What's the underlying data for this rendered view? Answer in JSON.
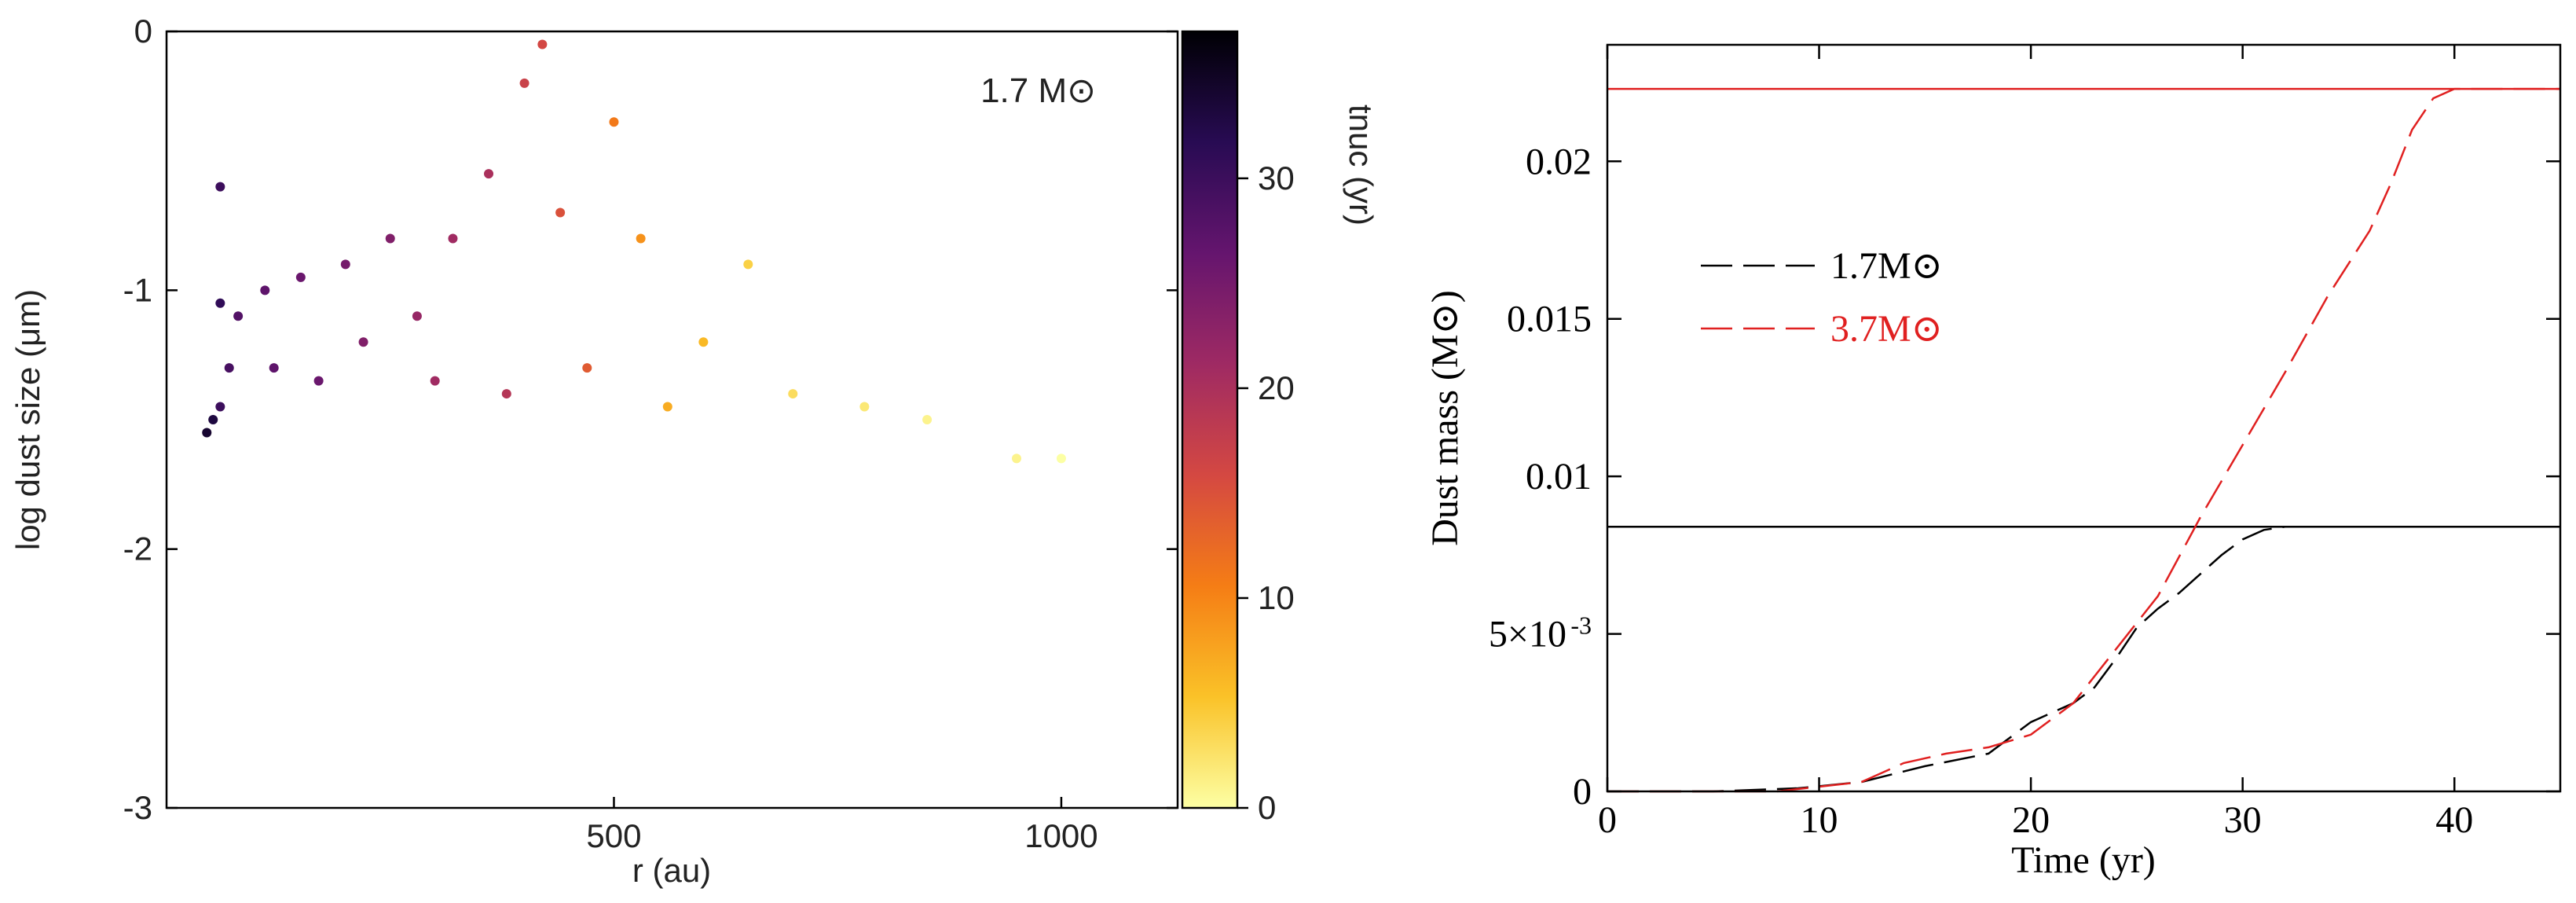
{
  "chart_data": [
    {
      "type": "scatter",
      "annotation": "1.7 M⊙",
      "xlabel": "r (au)",
      "ylabel": "log dust size (μm)",
      "xlim": [
        0,
        1130
      ],
      "ylim": [
        -3,
        0
      ],
      "x_ticks": [
        500,
        1000
      ],
      "x_tick_labels": [
        "500",
        "1000"
      ],
      "y_ticks": [
        0,
        -1,
        -2,
        -3
      ],
      "y_tick_labels": [
        "0",
        "-1",
        "-2",
        "-3"
      ],
      "colorbar": {
        "label": "tnuc (yr)",
        "range": [
          0,
          37
        ],
        "ticks": [
          0,
          10,
          20,
          30
        ],
        "tick_labels": [
          "0",
          "10",
          "20",
          "30"
        ],
        "colormap": "inferno-reversed",
        "colors": [
          "#fcffa4",
          "#fac228",
          "#f57d15",
          "#d44842",
          "#9f2a63",
          "#65156e",
          "#280b53",
          "#000004"
        ]
      },
      "points": [
        {
          "x": 45,
          "y": -1.55,
          "t": 34
        },
        {
          "x": 52,
          "y": -1.5,
          "t": 33
        },
        {
          "x": 60,
          "y": -1.45,
          "t": 30
        },
        {
          "x": 60,
          "y": -1.05,
          "t": 31
        },
        {
          "x": 60,
          "y": -0.6,
          "t": 30
        },
        {
          "x": 70,
          "y": -1.3,
          "t": 29
        },
        {
          "x": 80,
          "y": -1.1,
          "t": 28
        },
        {
          "x": 110,
          "y": -1.0,
          "t": 27
        },
        {
          "x": 120,
          "y": -1.3,
          "t": 27
        },
        {
          "x": 150,
          "y": -0.95,
          "t": 26
        },
        {
          "x": 170,
          "y": -1.35,
          "t": 26
        },
        {
          "x": 200,
          "y": -0.9,
          "t": 25
        },
        {
          "x": 220,
          "y": -1.2,
          "t": 24
        },
        {
          "x": 250,
          "y": -0.8,
          "t": 24
        },
        {
          "x": 280,
          "y": -1.1,
          "t": 22
        },
        {
          "x": 300,
          "y": -1.35,
          "t": 21
        },
        {
          "x": 320,
          "y": -0.8,
          "t": 21
        },
        {
          "x": 360,
          "y": -0.55,
          "t": 20
        },
        {
          "x": 380,
          "y": -1.4,
          "t": 19
        },
        {
          "x": 400,
          "y": -0.2,
          "t": 17
        },
        {
          "x": 420,
          "y": -0.05,
          "t": 16
        },
        {
          "x": 440,
          "y": -0.7,
          "t": 15
        },
        {
          "x": 470,
          "y": -1.3,
          "t": 14
        },
        {
          "x": 500,
          "y": -0.35,
          "t": 11
        },
        {
          "x": 530,
          "y": -0.8,
          "t": 9
        },
        {
          "x": 560,
          "y": -1.45,
          "t": 7
        },
        {
          "x": 600,
          "y": -1.2,
          "t": 6
        },
        {
          "x": 650,
          "y": -0.9,
          "t": 4
        },
        {
          "x": 700,
          "y": -1.4,
          "t": 3
        },
        {
          "x": 780,
          "y": -1.45,
          "t": 2
        },
        {
          "x": 850,
          "y": -1.5,
          "t": 1
        },
        {
          "x": 950,
          "y": -1.65,
          "t": 1
        },
        {
          "x": 1000,
          "y": -1.65,
          "t": 0
        }
      ]
    },
    {
      "type": "line",
      "xlabel": "Time (yr)",
      "ylabel": "Dust mass (M⊙)",
      "xlim": [
        0,
        45
      ],
      "ylim": [
        0,
        0.0237
      ],
      "x_ticks": [
        0,
        10,
        20,
        30,
        40
      ],
      "x_tick_labels": [
        "0",
        "10",
        "20",
        "30",
        "40"
      ],
      "y_ticks": [
        0,
        0.005,
        0.01,
        0.015,
        0.02
      ],
      "y_tick_labels": [
        "0",
        "5×10",
        "0.01",
        "0.015",
        "0.02"
      ],
      "y_tick_exponent": "-3",
      "legend_position": "upper-left",
      "series": [
        {
          "name": "1.7M⊙",
          "color": "#000000",
          "dashed": true,
          "x": [
            0,
            5,
            9,
            12,
            15,
            18,
            20,
            22,
            23,
            24,
            25,
            26,
            27,
            28,
            29,
            30,
            31,
            32,
            45
          ],
          "y": [
            0,
            0,
            0.0001,
            0.0003,
            0.0008,
            0.0012,
            0.0022,
            0.0028,
            0.0033,
            0.0042,
            0.0052,
            0.0058,
            0.0063,
            0.0069,
            0.0075,
            0.008,
            0.0083,
            0.0084,
            0.0084
          ]
        },
        {
          "name": "3.7M⊙",
          "color": "#e02020",
          "dashed": true,
          "x": [
            0,
            8,
            12,
            14,
            16,
            18,
            20,
            22,
            24,
            26,
            28,
            30,
            32,
            34,
            36,
            37,
            38,
            39,
            40,
            41,
            45
          ],
          "y": [
            0,
            0,
            0.0003,
            0.0009,
            0.0012,
            0.0014,
            0.0018,
            0.0028,
            0.0045,
            0.0062,
            0.0087,
            0.011,
            0.0133,
            0.0157,
            0.0178,
            0.0193,
            0.021,
            0.022,
            0.0223,
            0.0223,
            0.0223
          ]
        }
      ],
      "reference_lines": [
        {
          "y": 0.0223,
          "color": "#e02020"
        },
        {
          "y": 0.0084,
          "color": "#000000"
        }
      ]
    }
  ]
}
